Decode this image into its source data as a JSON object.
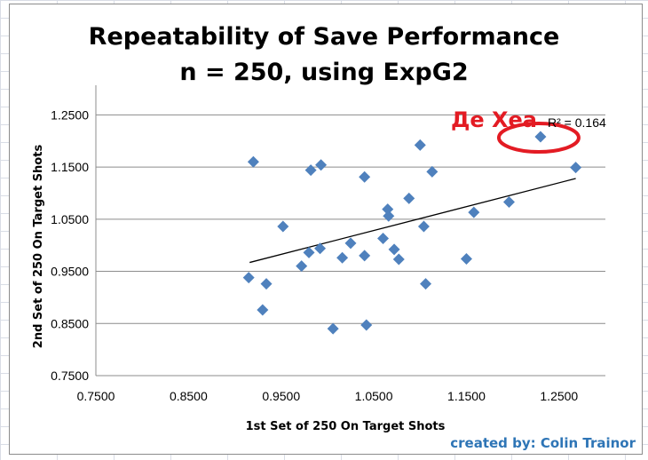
{
  "title": "Repeatability of Save Performance",
  "subtitle": "n = 250, using ExpG2",
  "credit": "created by: Colin Trainor",
  "annotation": {
    "label": "Де Хеа",
    "color": "#e31b23"
  },
  "r2_label": "R² = 0.164",
  "colors": {
    "marker": "#4f81bd",
    "gridline": "#8c8c8c",
    "trendline": "#000000",
    "axis_text": "#000000"
  },
  "chart_data": {
    "type": "scatter",
    "xlabel": "1st Set of 250 On Target Shots",
    "ylabel": "2nd Set of 250 On Target Shots",
    "xlim": [
      0.75,
      1.3
    ],
    "ylim": [
      0.75,
      1.3
    ],
    "x_ticks": [
      "0.7500",
      "0.8500",
      "0.9500",
      "1.0500",
      "1.1500",
      "1.2500"
    ],
    "y_ticks": [
      "0.7500",
      "0.8500",
      "0.9500",
      "1.0500",
      "1.1500",
      "1.2500"
    ],
    "grid": "horizontal major gridlines",
    "marker": "diamond",
    "points": [
      {
        "x": 0.915,
        "y": 0.938
      },
      {
        "x": 0.92,
        "y": 1.16
      },
      {
        "x": 0.93,
        "y": 0.876
      },
      {
        "x": 0.934,
        "y": 0.926
      },
      {
        "x": 0.952,
        "y": 1.036
      },
      {
        "x": 0.972,
        "y": 0.96
      },
      {
        "x": 0.98,
        "y": 0.986
      },
      {
        "x": 0.982,
        "y": 1.144
      },
      {
        "x": 0.992,
        "y": 0.994
      },
      {
        "x": 0.993,
        "y": 1.154
      },
      {
        "x": 1.006,
        "y": 0.84
      },
      {
        "x": 1.016,
        "y": 0.976
      },
      {
        "x": 1.025,
        "y": 1.004
      },
      {
        "x": 1.04,
        "y": 0.98
      },
      {
        "x": 1.04,
        "y": 1.131
      },
      {
        "x": 1.042,
        "y": 0.847
      },
      {
        "x": 1.06,
        "y": 1.013
      },
      {
        "x": 1.065,
        "y": 1.069
      },
      {
        "x": 1.066,
        "y": 1.056
      },
      {
        "x": 1.072,
        "y": 0.992
      },
      {
        "x": 1.077,
        "y": 0.973
      },
      {
        "x": 1.088,
        "y": 1.09
      },
      {
        "x": 1.1,
        "y": 1.192
      },
      {
        "x": 1.104,
        "y": 1.036
      },
      {
        "x": 1.106,
        "y": 0.926
      },
      {
        "x": 1.113,
        "y": 1.141
      },
      {
        "x": 1.15,
        "y": 0.974
      },
      {
        "x": 1.158,
        "y": 1.063
      },
      {
        "x": 1.196,
        "y": 1.083
      },
      {
        "x": 1.23,
        "y": 1.208
      },
      {
        "x": 1.268,
        "y": 1.149
      }
    ],
    "trendline": {
      "type": "linear",
      "x": [
        0.916,
        1.268
      ],
      "y": [
        0.967,
        1.128
      ]
    },
    "highlight": {
      "x": 1.23,
      "y": 1.208
    }
  }
}
